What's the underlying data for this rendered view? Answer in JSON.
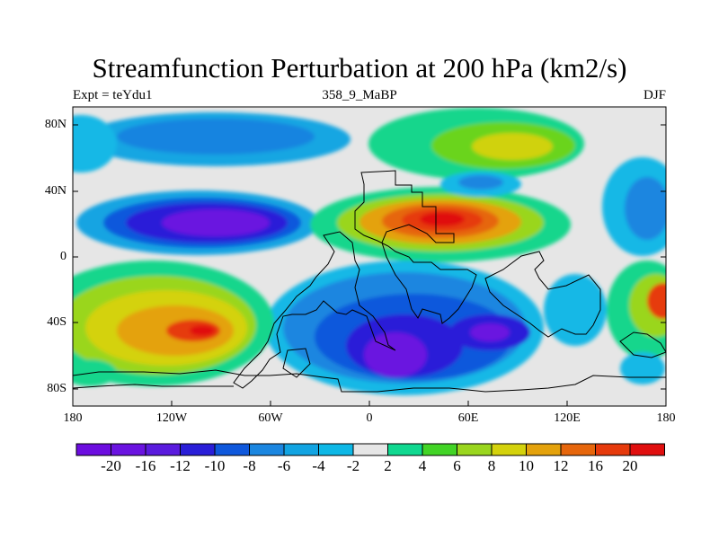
{
  "title": "Streamfunction Perturbation at 200 hPa (km2/s)",
  "subtitle_left": "Expt = teYdu1",
  "subtitle_center": "358_9_MaBP",
  "subtitle_right": "DJF",
  "y_tick_labels": [
    "80N",
    "40N",
    "0",
    "40S",
    "80S"
  ],
  "x_tick_labels": [
    "180",
    "120W",
    "60W",
    "0",
    "60E",
    "120E",
    "180"
  ],
  "colorbar_labels": [
    "-20",
    "-16",
    "-12",
    "-10",
    "-8",
    "-6",
    "-4",
    "-2",
    "2",
    "4",
    "6",
    "8",
    "10",
    "12",
    "16",
    "20"
  ],
  "colors": {
    "background": "#e6e6e6",
    "colorbar": [
      "#6c0ddf",
      "#6a13e0",
      "#5a1bde",
      "#2a1ed8",
      "#0f58dc",
      "#1b86e0",
      "#12a4e2",
      "#0eb8e6",
      "#e6e6e6",
      "#10d890",
      "#42d426",
      "#9ad61e",
      "#d4d20c",
      "#e4a20c",
      "#e6660c",
      "#e63a0c",
      "#e00f0f"
    ]
  },
  "map_features": [
    "continent-outlines",
    "filled-contours"
  ]
}
